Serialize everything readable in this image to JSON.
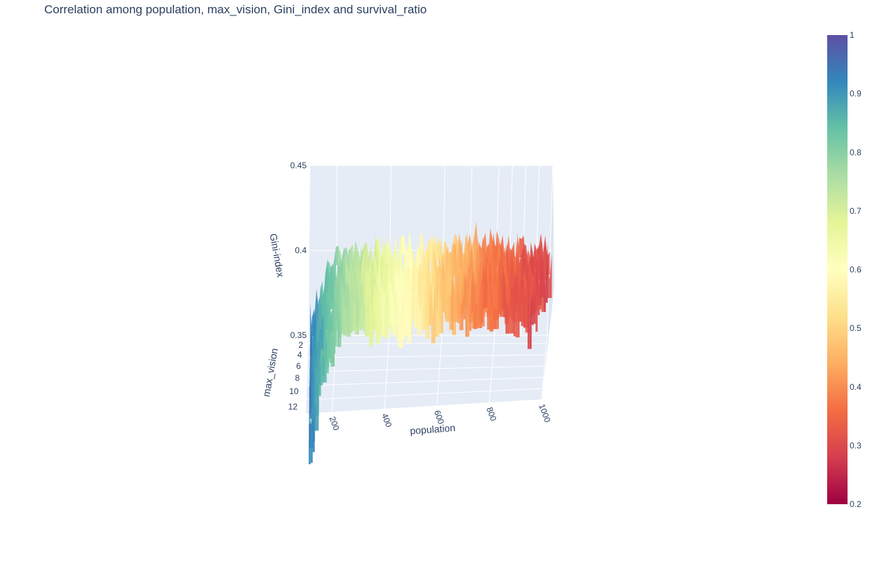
{
  "chart_data": {
    "type": "surface",
    "title": "Correlation among population, max_vision, Gini_index and survival_ratio",
    "x_axis": {
      "title": "population",
      "range": [
        100,
        1000
      ],
      "ticks": [
        200,
        400,
        600,
        800,
        1000
      ],
      "tick_labels": [
        "200",
        "400",
        "600",
        "800",
        "1000"
      ]
    },
    "y_axis": {
      "title": "max_vision",
      "range": [
        1,
        12
      ],
      "ticks": [
        2,
        4,
        6,
        8,
        10,
        12
      ],
      "tick_labels": [
        "2",
        "4",
        "6",
        "8",
        "10",
        "12"
      ]
    },
    "z_axis": {
      "title": "Gini-index",
      "range": [
        0.35,
        0.45
      ],
      "ticks": [
        0.35,
        0.4,
        0.45
      ],
      "tick_labels": [
        "0.35",
        "0.4",
        "0.45"
      ]
    },
    "colorbar": {
      "colorscale": "Spectral",
      "range": [
        0.2,
        1
      ],
      "ticks": [
        0.2,
        0.3,
        0.4,
        0.5,
        0.6,
        0.7,
        0.8,
        0.9,
        1
      ],
      "tick_labels": [
        "0.2",
        "0.3",
        "0.4",
        "0.5",
        "0.6",
        "0.7",
        "0.8",
        "0.9",
        "1"
      ],
      "stops": [
        "#9e0142",
        "#d53e4f",
        "#f46d43",
        "#fdae61",
        "#fee08b",
        "#ffffbf",
        "#e6f598",
        "#abdda4",
        "#66c2a5",
        "#3288bd",
        "#5e4fa2"
      ]
    },
    "grid": true,
    "scene_background": "#e5ecf6",
    "gridline_color": "#ffffff",
    "surface_description_note": null,
    "population_profile": [
      {
        "population": 100,
        "gini_index": 0.365,
        "survival_ratio": 0.93
      },
      {
        "population": 150,
        "gini_index": 0.385,
        "survival_ratio": 0.86
      },
      {
        "population": 200,
        "gini_index": 0.392,
        "survival_ratio": 0.8
      },
      {
        "population": 250,
        "gini_index": 0.395,
        "survival_ratio": 0.76
      },
      {
        "population": 300,
        "gini_index": 0.397,
        "survival_ratio": 0.72
      },
      {
        "population": 400,
        "gini_index": 0.398,
        "survival_ratio": 0.65
      },
      {
        "population": 500,
        "gini_index": 0.399,
        "survival_ratio": 0.58
      },
      {
        "population": 600,
        "gini_index": 0.4,
        "survival_ratio": 0.5
      },
      {
        "population": 700,
        "gini_index": 0.401,
        "survival_ratio": 0.43
      },
      {
        "population": 800,
        "gini_index": 0.401,
        "survival_ratio": 0.37
      },
      {
        "population": 900,
        "gini_index": 0.4,
        "survival_ratio": 0.33
      },
      {
        "population": 1000,
        "gini_index": 0.398,
        "survival_ratio": 0.3
      }
    ]
  }
}
